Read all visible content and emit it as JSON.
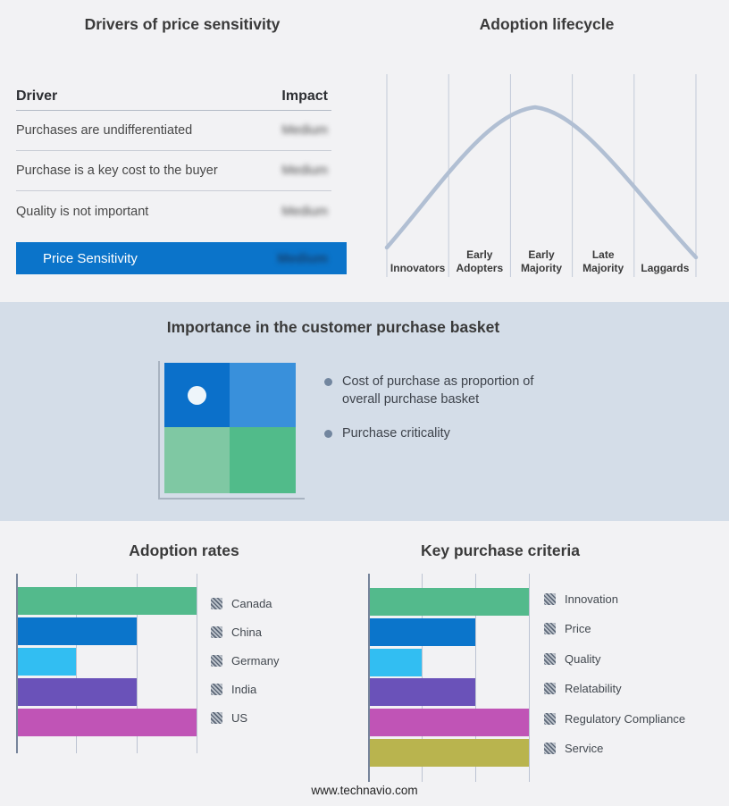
{
  "page": {
    "footer_text": "www.technavio.com",
    "background_color": "#f2f2f4",
    "band_color": "#d4dde8"
  },
  "drivers_panel": {
    "title": "Drivers of price sensitivity",
    "header": {
      "driver": "Driver",
      "impact": "Impact"
    },
    "rows": [
      {
        "driver": "Purchases are undifferentiated",
        "impact": "Medium"
      },
      {
        "driver": "Purchase is a key cost to the buyer",
        "impact": "Medium"
      },
      {
        "driver": "Quality is not important",
        "impact": "Medium"
      }
    ],
    "summary_row": {
      "label": "Price Sensitivity",
      "impact": "Medium",
      "bar_color": "#0b74ca"
    },
    "impact_values_obscured": true
  },
  "basket_panel": {
    "title": "Importance in the customer purchase basket",
    "bullets": [
      "Cost of purchase as proportion of overall purchase basket",
      "Purchase criticality"
    ],
    "quadrant_colors": [
      "#0b70ca",
      "#3990db",
      "#7fc8a3",
      "#51bb8a"
    ],
    "marker_dot_color": "#eef5fa",
    "marker_dot_quadrant": "top-left"
  },
  "chart_data": [
    {
      "id": "adoption_rates",
      "type": "bar",
      "orientation": "horizontal",
      "title": "Adoption rates",
      "categories": [
        "Canada",
        "China",
        "Germany",
        "India",
        "US"
      ],
      "values": [
        3,
        2,
        1,
        2,
        3
      ],
      "xlim": [
        0,
        3
      ],
      "axis_tick_labels_shown": false,
      "colors": [
        "#53ba8c",
        "#0b75cb",
        "#32bef2",
        "#6a52b9",
        "#c054b6"
      ],
      "legend_position": "right",
      "grid": true
    },
    {
      "id": "key_purchase_criteria",
      "type": "bar",
      "orientation": "horizontal",
      "title": "Key purchase criteria",
      "categories": [
        "Innovation",
        "Price",
        "Quality",
        "Relatability",
        "Regulatory Compliance",
        "Service"
      ],
      "values": [
        3,
        2,
        1,
        2,
        3,
        3
      ],
      "xlim": [
        0,
        3
      ],
      "axis_tick_labels_shown": false,
      "colors": [
        "#53ba8c",
        "#0b75cb",
        "#32bef2",
        "#6a52b9",
        "#c054b6",
        "#b9b44e"
      ],
      "legend_position": "right",
      "grid": true
    },
    {
      "id": "adoption_lifecycle",
      "type": "line",
      "title": "Adoption lifecycle",
      "shape": "bell curve",
      "stages": [
        [
          "Innovators"
        ],
        [
          "Early",
          "Adopters"
        ],
        [
          "Early",
          "Majority"
        ],
        [
          "Late",
          "Majority"
        ],
        [
          "Laggards"
        ]
      ],
      "peak_stage": "Early Majority",
      "curve_color": "#b1bfd3",
      "grid": true
    }
  ]
}
